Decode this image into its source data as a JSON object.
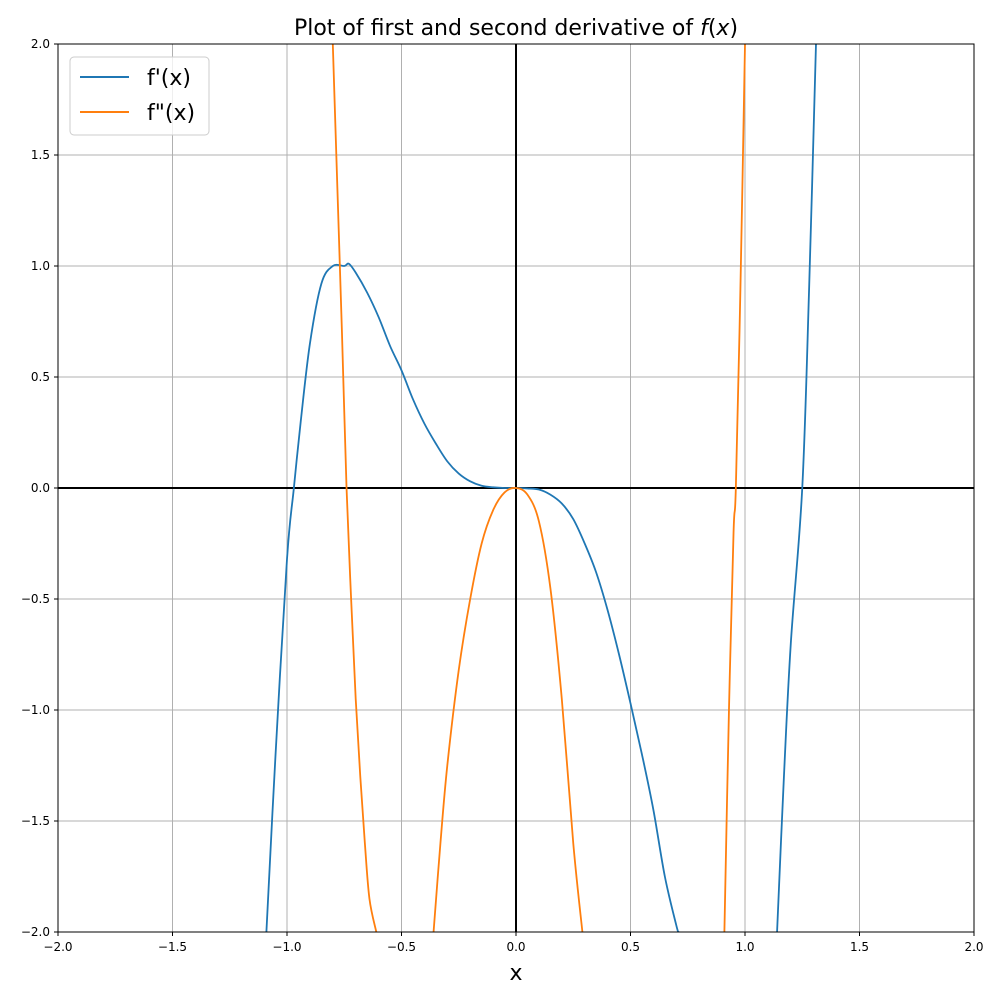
{
  "chart_data": {
    "type": "line",
    "title": "Plot of first and second derivative of",
    "title_fx": "f",
    "title_suffix": "(x)",
    "title_var": "x",
    "xlabel": "x",
    "ylabel": "",
    "xlim": [
      -2.0,
      2.0
    ],
    "ylim": [
      -2.0,
      2.0
    ],
    "xticks": [
      -2.0,
      -1.5,
      -1.0,
      -0.5,
      0.0,
      0.5,
      1.0,
      1.5,
      2.0
    ],
    "xtick_labels": [
      "−2.0",
      "−1.5",
      "−1.0",
      "−0.5",
      "0.0",
      "0.5",
      "1.0",
      "1.5",
      "2.0"
    ],
    "yticks": [
      -2.0,
      -1.5,
      -1.0,
      -0.5,
      0.0,
      0.5,
      1.0,
      1.5,
      2.0
    ],
    "ytick_labels": [
      "−2.0",
      "−1.5",
      "−1.0",
      "−0.5",
      "0.0",
      "0.5",
      "1.0",
      "1.5",
      "2.0"
    ],
    "grid": true,
    "legend_position": "top-left",
    "series": [
      {
        "name": "f'(x)",
        "color": "#1f77b4",
        "x": [
          -1.09,
          -1.05,
          -1.0,
          -0.97,
          -0.94,
          -0.9,
          -0.85,
          -0.8,
          -0.75,
          -0.73,
          -0.7,
          -0.65,
          -0.6,
          -0.55,
          -0.5,
          -0.45,
          -0.4,
          -0.35,
          -0.3,
          -0.25,
          -0.2,
          -0.15,
          -0.1,
          -0.05,
          0.0,
          0.05,
          0.1,
          0.15,
          0.2,
          0.25,
          0.3,
          0.35,
          0.4,
          0.45,
          0.5,
          0.55,
          0.6,
          0.65,
          0.7,
          0.71,
          1.14,
          1.17,
          1.2,
          1.25,
          1.28,
          1.31
        ],
        "y": [
          -2.0,
          -1.2,
          -0.32,
          0.0,
          0.3,
          0.65,
          0.92,
          1.0,
          1.0,
          1.01,
          0.97,
          0.88,
          0.77,
          0.64,
          0.53,
          0.4,
          0.29,
          0.2,
          0.12,
          0.065,
          0.03,
          0.01,
          0.003,
          0.0,
          0.0,
          -0.002,
          -0.007,
          -0.03,
          -0.07,
          -0.14,
          -0.25,
          -0.38,
          -0.55,
          -0.75,
          -0.97,
          -1.2,
          -1.45,
          -1.75,
          -1.97,
          -2.0,
          -2.0,
          -1.3,
          -0.7,
          0.0,
          0.9,
          2.0
        ]
      },
      {
        "name": "f\"(x)",
        "color": "#ff7f0e",
        "x": [
          -0.8,
          -0.78,
          -0.76,
          -0.74,
          -0.72,
          -0.7,
          -0.68,
          -0.66,
          -0.64,
          -0.61,
          -0.36,
          -0.33,
          -0.3,
          -0.25,
          -0.2,
          -0.15,
          -0.1,
          -0.05,
          0.0,
          0.05,
          0.1,
          0.15,
          0.2,
          0.25,
          0.29,
          0.91,
          0.93,
          0.95,
          0.96,
          0.98,
          1.0
        ],
        "y": [
          2.0,
          1.35,
          0.7,
          0.0,
          -0.5,
          -0.95,
          -1.3,
          -1.6,
          -1.85,
          -2.0,
          -2.0,
          -1.6,
          -1.25,
          -0.82,
          -0.5,
          -0.25,
          -0.1,
          -0.02,
          0.0,
          -0.03,
          -0.15,
          -0.45,
          -0.95,
          -1.6,
          -2.0,
          -2.0,
          -1.0,
          -0.2,
          0.0,
          0.9,
          2.0
        ]
      }
    ]
  }
}
